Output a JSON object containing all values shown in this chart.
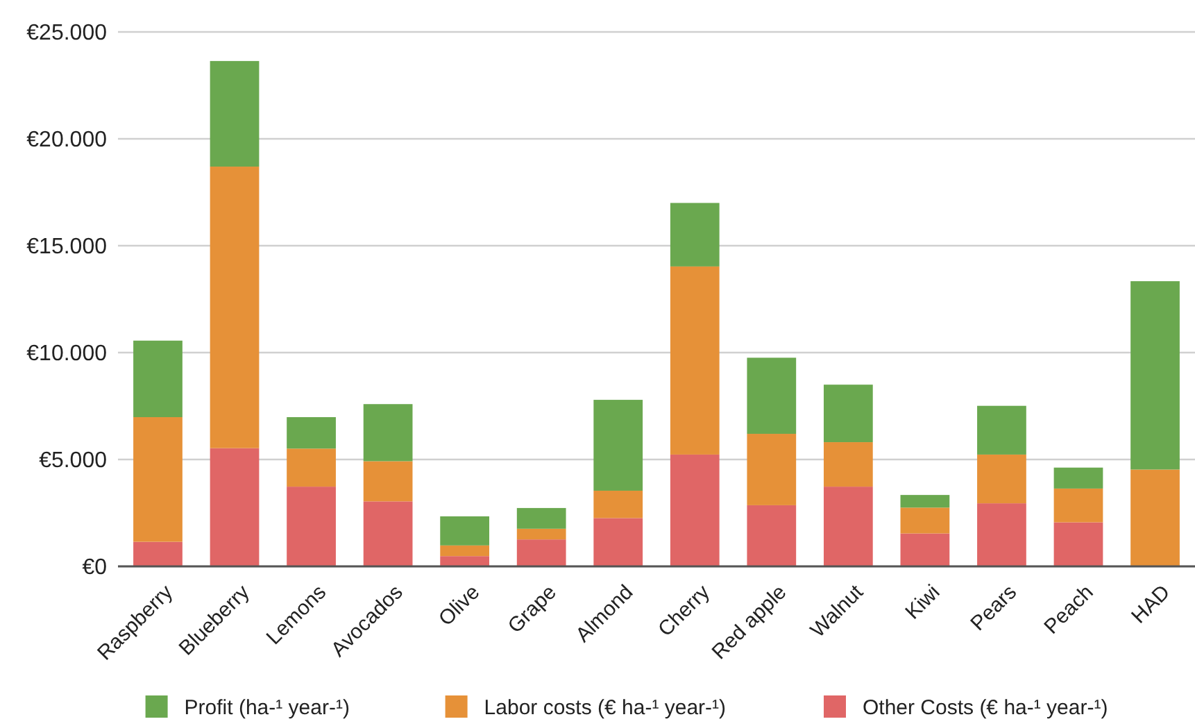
{
  "chart_data": {
    "type": "bar",
    "stacked": true,
    "categories": [
      "Raspberry",
      "Blueberry",
      "Lemons",
      "Avocados",
      "Olive",
      "Grape",
      "Almond",
      "Cherry",
      "Red apple",
      "Walnut",
      "Kiwi",
      "Pears",
      "Peach",
      "HAD"
    ],
    "series": [
      {
        "name": "Other Costs (€ ha-¹ year-¹)",
        "color": "#e06666",
        "values": [
          1150,
          5530,
          3730,
          3040,
          480,
          1260,
          2260,
          5230,
          2860,
          3730,
          1540,
          2950,
          2060,
          0
        ]
      },
      {
        "name": "Labor costs (€ ha-¹ year-¹)",
        "color": "#e69138",
        "values": [
          5830,
          13170,
          1780,
          1880,
          500,
          500,
          1280,
          8800,
          3340,
          2080,
          1210,
          2280,
          1580,
          4530
        ]
      },
      {
        "name": "Profit (ha-¹ year-¹)",
        "color": "#6aa84f",
        "values": [
          3580,
          4940,
          1470,
          2670,
          1360,
          970,
          4250,
          2970,
          3560,
          2690,
          590,
          2280,
          980,
          8810
        ]
      }
    ],
    "ylim": [
      0,
      25000
    ],
    "yticks": [
      {
        "value": 0,
        "label": "€0"
      },
      {
        "value": 5000,
        "label": "€5.000"
      },
      {
        "value": 10000,
        "label": "€10.000"
      },
      {
        "value": 15000,
        "label": "€15.000"
      },
      {
        "value": 20000,
        "label": "€20.000"
      },
      {
        "value": 25000,
        "label": "€25.000"
      }
    ],
    "grid": "y",
    "legend": "bottom"
  }
}
